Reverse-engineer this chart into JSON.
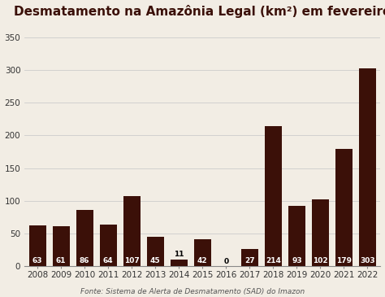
{
  "title": "Desmatamento na Amazônia Legal (km²) em fevereiro",
  "years": [
    "2008",
    "2009",
    "2010",
    "2011",
    "2012",
    "2013",
    "2014",
    "2015",
    "2016",
    "2017",
    "2018",
    "2019",
    "2020",
    "2021",
    "2022"
  ],
  "values": [
    63,
    61,
    86,
    64,
    107,
    45,
    11,
    42,
    0,
    27,
    214,
    93,
    102,
    179,
    303
  ],
  "bar_color": "#3B1008",
  "label_color_inside": "#FFFFFF",
  "label_color_outside": "#000000",
  "background_color": "#F2EDE4",
  "title_color": "#3B1008",
  "ylabel_ticks": [
    0,
    50,
    100,
    150,
    200,
    250,
    300,
    350
  ],
  "ylim": [
    0,
    370
  ],
  "source_text": "Fonte: Sistema de Alerta de Desmatamento (SAD) do Imazon",
  "title_fontsize": 11,
  "label_fontsize": 6.5,
  "tick_fontsize": 7.5,
  "source_fontsize": 6.5,
  "grid_color": "#CCCCCC",
  "spine_color": "#888888"
}
